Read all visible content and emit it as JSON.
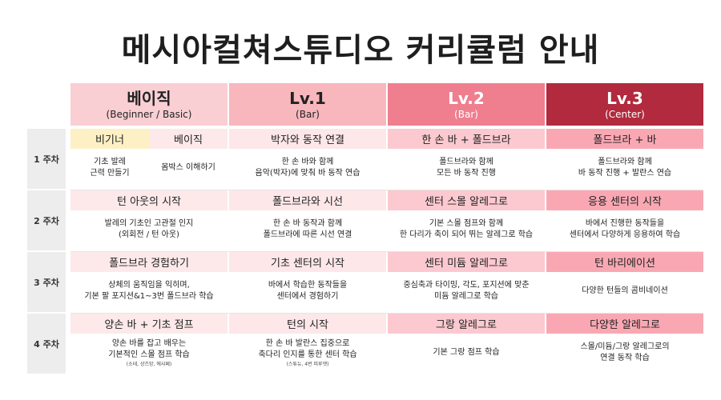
{
  "title": "메시아컬쳐스튜디오 커리큘럼 안내",
  "columns": [
    {
      "main": "베이직",
      "sub": "(Beginner / Basic)",
      "bg": "#f9cfd3",
      "fg": "#222222"
    },
    {
      "main": "Lv.1",
      "sub": "(Bar)",
      "bg": "#f7b7bd",
      "fg": "#222222"
    },
    {
      "main": "Lv.2",
      "sub": "(Bar)",
      "bg": "#ef7e8f",
      "fg": "#ffffff"
    },
    {
      "main": "Lv.3",
      "sub": "(Center)",
      "bg": "#b12a3d",
      "fg": "#ffffff"
    }
  ],
  "weeks": [
    {
      "label": "1 주차",
      "basic_split": {
        "left_title": "비기너",
        "right_title": "베이직",
        "left_desc": [
          "기초 발레",
          "근력 만들기"
        ],
        "right_desc": [
          "몸박스 이해하기"
        ]
      },
      "lv1": {
        "title": "박자와 동작 연결",
        "desc": [
          "한 손 바와 함께",
          "음악(박자)에 맞춰 바 동작 연습"
        ]
      },
      "lv2": {
        "title": "한 손 바 + 폴드브라",
        "desc": [
          "폴드브라와 함께",
          "모든 바 동작 진행"
        ]
      },
      "lv3": {
        "title": "폴드브라 + 바",
        "desc": [
          "폴드브라와 함께",
          "바 동작 진행 + 발란스 연습"
        ]
      }
    },
    {
      "label": "2 주차",
      "basic": {
        "title": "턴 아웃의 시작",
        "desc": [
          "발레의 기초인 고관절 인지",
          "(외회전 / 턴 아웃)"
        ]
      },
      "lv1": {
        "title": "폴드브라와 시선",
        "desc": [
          "한 손 바 동작과 함께",
          "폴드브라에 따른 시선 연결"
        ]
      },
      "lv2": {
        "title": "센터 스몰 알레그로",
        "desc": [
          "기본 스몰 점프와 함께",
          "한 다리가 축이 되어 뛰는 알레그로 학습"
        ]
      },
      "lv3": {
        "title": "응용 센터의 시작",
        "desc": [
          "바에서 진행한 동작들을",
          "센터에서 다양하게 응용하여 학습"
        ]
      }
    },
    {
      "label": "3 주차",
      "basic": {
        "title": "폴드브라 경험하기",
        "desc": [
          "상체의 움직임을 익히며,",
          "기본 팔 포지션&1~3번 폴드브라 학습"
        ]
      },
      "lv1": {
        "title": "기초 센터의 시작",
        "desc": [
          "바에서 학습한 동작들을",
          "센터에서 경험하기"
        ]
      },
      "lv2": {
        "title": "센터 미듐 알레그로",
        "desc": [
          "중심축과 타이밍, 각도, 포지션에 맞춘",
          "미듐 알레그로 학습"
        ]
      },
      "lv3": {
        "title": "턴 바리에이션",
        "desc": [
          "다양한 턴들의 콤비네이션"
        ]
      }
    },
    {
      "label": "4 주차",
      "basic": {
        "title": "양손 바 + 기초 점프",
        "desc": [
          "양손 바를 잡고 배우는",
          "기본적인 스몰 점프 학습"
        ],
        "note": "(소테, 샹즈망, 에샤페)"
      },
      "lv1": {
        "title": "턴의 시작",
        "desc": [
          "한 손 바 발란스 집중으로",
          "축다리 인지를 통한 센터 학습"
        ],
        "note": "(스튜뉴, 4번 피루엣)"
      },
      "lv2": {
        "title": "그랑 알레그로",
        "desc": [
          "기본 그랑 점프 학습"
        ]
      },
      "lv3": {
        "title": "다양한 알레그로",
        "desc": [
          "스몰/미듐/그랑 알레그로의",
          "연결 동작 학습"
        ]
      }
    }
  ],
  "colors": {
    "basic_title": "#fde9ea",
    "beginner_title": "#fdf0c4",
    "lv1_title": "#fde7e9",
    "lv2_title": "#fbc9cf",
    "lv3_title": "#f9a8b3",
    "week_bg": "#ededed"
  }
}
